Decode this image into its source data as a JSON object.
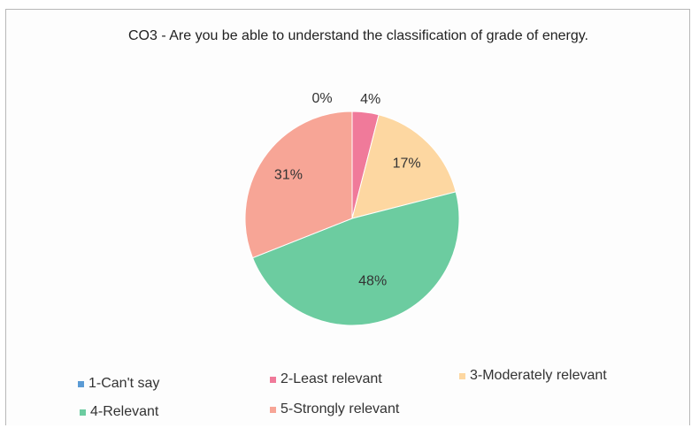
{
  "chart_data": {
    "type": "pie",
    "title": "CO3 - Are you be able to understand the classification of grade of energy.",
    "categories": [
      "1-Can't say",
      "2-Least relevant",
      "3-Moderately relevant",
      "4-Relevant",
      "5-Strongly relevant"
    ],
    "values": [
      0,
      4,
      17,
      48,
      31
    ],
    "data_labels": [
      "0%",
      "4%",
      "17%",
      "48%",
      "31%"
    ],
    "colors": [
      "#5b9bd5",
      "#f07a9a",
      "#fdd7a1",
      "#6ccca0",
      "#f7a596"
    ],
    "legend_position": "bottom"
  }
}
